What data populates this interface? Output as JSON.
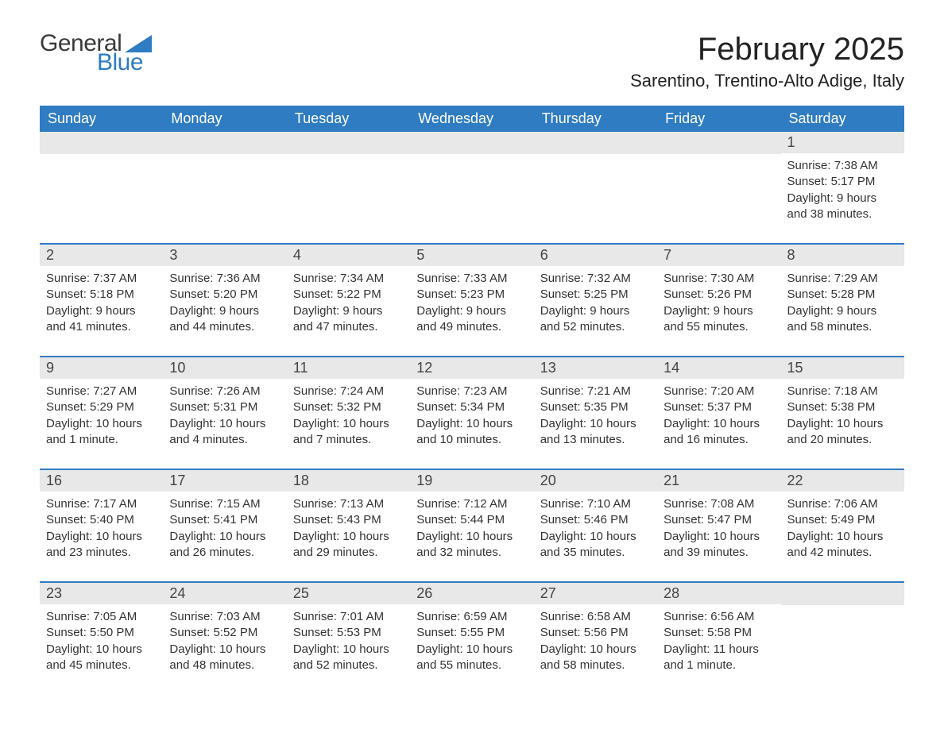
{
  "brand": {
    "text_general": "General",
    "text_blue": "Blue",
    "triangle_color": "#2f7cc2",
    "text_color_general": "#3a3a3a",
    "text_color_blue": "#2f7cc2"
  },
  "header": {
    "month_title": "February 2025",
    "location": "Sarentino, Trentino-Alto Adige, Italy"
  },
  "styling": {
    "page_bg": "#ffffff",
    "header_row_bg": "#2f7cc2",
    "header_row_text": "#ffffff",
    "day_num_bg": "#e8e8e8",
    "week_separator_color": "#2f7cc2",
    "body_text_color": "#333333",
    "weekday_fontsize": 18,
    "title_fontsize": 40,
    "location_fontsize": 22,
    "body_fontsize": 15
  },
  "weekdays": [
    "Sunday",
    "Monday",
    "Tuesday",
    "Wednesday",
    "Thursday",
    "Friday",
    "Saturday"
  ],
  "weeks": [
    [
      null,
      null,
      null,
      null,
      null,
      null,
      {
        "day": "1",
        "sunrise": "Sunrise: 7:38 AM",
        "sunset": "Sunset: 5:17 PM",
        "daylight": "Daylight: 9 hours and 38 minutes."
      }
    ],
    [
      {
        "day": "2",
        "sunrise": "Sunrise: 7:37 AM",
        "sunset": "Sunset: 5:18 PM",
        "daylight": "Daylight: 9 hours and 41 minutes."
      },
      {
        "day": "3",
        "sunrise": "Sunrise: 7:36 AM",
        "sunset": "Sunset: 5:20 PM",
        "daylight": "Daylight: 9 hours and 44 minutes."
      },
      {
        "day": "4",
        "sunrise": "Sunrise: 7:34 AM",
        "sunset": "Sunset: 5:22 PM",
        "daylight": "Daylight: 9 hours and 47 minutes."
      },
      {
        "day": "5",
        "sunrise": "Sunrise: 7:33 AM",
        "sunset": "Sunset: 5:23 PM",
        "daylight": "Daylight: 9 hours and 49 minutes."
      },
      {
        "day": "6",
        "sunrise": "Sunrise: 7:32 AM",
        "sunset": "Sunset: 5:25 PM",
        "daylight": "Daylight: 9 hours and 52 minutes."
      },
      {
        "day": "7",
        "sunrise": "Sunrise: 7:30 AM",
        "sunset": "Sunset: 5:26 PM",
        "daylight": "Daylight: 9 hours and 55 minutes."
      },
      {
        "day": "8",
        "sunrise": "Sunrise: 7:29 AM",
        "sunset": "Sunset: 5:28 PM",
        "daylight": "Daylight: 9 hours and 58 minutes."
      }
    ],
    [
      {
        "day": "9",
        "sunrise": "Sunrise: 7:27 AM",
        "sunset": "Sunset: 5:29 PM",
        "daylight": "Daylight: 10 hours and 1 minute."
      },
      {
        "day": "10",
        "sunrise": "Sunrise: 7:26 AM",
        "sunset": "Sunset: 5:31 PM",
        "daylight": "Daylight: 10 hours and 4 minutes."
      },
      {
        "day": "11",
        "sunrise": "Sunrise: 7:24 AM",
        "sunset": "Sunset: 5:32 PM",
        "daylight": "Daylight: 10 hours and 7 minutes."
      },
      {
        "day": "12",
        "sunrise": "Sunrise: 7:23 AM",
        "sunset": "Sunset: 5:34 PM",
        "daylight": "Daylight: 10 hours and 10 minutes."
      },
      {
        "day": "13",
        "sunrise": "Sunrise: 7:21 AM",
        "sunset": "Sunset: 5:35 PM",
        "daylight": "Daylight: 10 hours and 13 minutes."
      },
      {
        "day": "14",
        "sunrise": "Sunrise: 7:20 AM",
        "sunset": "Sunset: 5:37 PM",
        "daylight": "Daylight: 10 hours and 16 minutes."
      },
      {
        "day": "15",
        "sunrise": "Sunrise: 7:18 AM",
        "sunset": "Sunset: 5:38 PM",
        "daylight": "Daylight: 10 hours and 20 minutes."
      }
    ],
    [
      {
        "day": "16",
        "sunrise": "Sunrise: 7:17 AM",
        "sunset": "Sunset: 5:40 PM",
        "daylight": "Daylight: 10 hours and 23 minutes."
      },
      {
        "day": "17",
        "sunrise": "Sunrise: 7:15 AM",
        "sunset": "Sunset: 5:41 PM",
        "daylight": "Daylight: 10 hours and 26 minutes."
      },
      {
        "day": "18",
        "sunrise": "Sunrise: 7:13 AM",
        "sunset": "Sunset: 5:43 PM",
        "daylight": "Daylight: 10 hours and 29 minutes."
      },
      {
        "day": "19",
        "sunrise": "Sunrise: 7:12 AM",
        "sunset": "Sunset: 5:44 PM",
        "daylight": "Daylight: 10 hours and 32 minutes."
      },
      {
        "day": "20",
        "sunrise": "Sunrise: 7:10 AM",
        "sunset": "Sunset: 5:46 PM",
        "daylight": "Daylight: 10 hours and 35 minutes."
      },
      {
        "day": "21",
        "sunrise": "Sunrise: 7:08 AM",
        "sunset": "Sunset: 5:47 PM",
        "daylight": "Daylight: 10 hours and 39 minutes."
      },
      {
        "day": "22",
        "sunrise": "Sunrise: 7:06 AM",
        "sunset": "Sunset: 5:49 PM",
        "daylight": "Daylight: 10 hours and 42 minutes."
      }
    ],
    [
      {
        "day": "23",
        "sunrise": "Sunrise: 7:05 AM",
        "sunset": "Sunset: 5:50 PM",
        "daylight": "Daylight: 10 hours and 45 minutes."
      },
      {
        "day": "24",
        "sunrise": "Sunrise: 7:03 AM",
        "sunset": "Sunset: 5:52 PM",
        "daylight": "Daylight: 10 hours and 48 minutes."
      },
      {
        "day": "25",
        "sunrise": "Sunrise: 7:01 AM",
        "sunset": "Sunset: 5:53 PM",
        "daylight": "Daylight: 10 hours and 52 minutes."
      },
      {
        "day": "26",
        "sunrise": "Sunrise: 6:59 AM",
        "sunset": "Sunset: 5:55 PM",
        "daylight": "Daylight: 10 hours and 55 minutes."
      },
      {
        "day": "27",
        "sunrise": "Sunrise: 6:58 AM",
        "sunset": "Sunset: 5:56 PM",
        "daylight": "Daylight: 10 hours and 58 minutes."
      },
      {
        "day": "28",
        "sunrise": "Sunrise: 6:56 AM",
        "sunset": "Sunset: 5:58 PM",
        "daylight": "Daylight: 11 hours and 1 minute."
      },
      null
    ]
  ]
}
